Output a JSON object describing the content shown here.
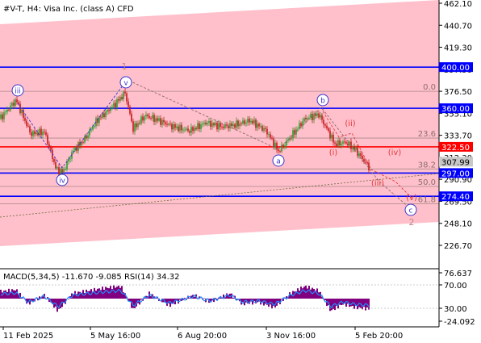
{
  "header": {
    "title": "#V-T, H4:  Visa Inc. (class A) CFD"
  },
  "colors": {
    "channel": "#ffc0cb",
    "blue_level": "#0000ff",
    "red_level": "#ff0000",
    "bull": "#2a9d2a",
    "bear": "#c51818",
    "wave_blue": "#3b33cc",
    "wave_red": "#e23a3a",
    "wave_marker": "#c98080",
    "fib": "#aa8888",
    "macd_hist": "#800080",
    "rsi": "#1e90ff"
  },
  "price_axis": {
    "ticks": [
      "462.10",
      "440.70",
      "419.30",
      "397.90",
      "376.50",
      "355.10",
      "333.70",
      "312.30",
      "290.90",
      "269.50",
      "248.10",
      "226.70"
    ]
  },
  "time_axis": {
    "ticks": [
      "11 Feb 2025",
      "5 May 16:00",
      "6 Aug 20:00",
      "3 Nov 16:00",
      "5 Feb 20:00"
    ]
  },
  "levels": [
    {
      "name": "level-400",
      "price": "400.00",
      "color": "blue"
    },
    {
      "name": "level-360",
      "price": "360.00",
      "color": "blue"
    },
    {
      "name": "level-322",
      "price": "322.50",
      "color": "red"
    },
    {
      "name": "level-297",
      "price": "297.00",
      "color": "blue"
    },
    {
      "name": "level-274",
      "price": "274.40",
      "color": "blue"
    }
  ],
  "current_price": "307.99",
  "fib_labels": [
    "0.0",
    "23.6",
    "38.2",
    "50.0",
    "61.8"
  ],
  "wave_labels": {
    "iii": "iii",
    "iv": "iv",
    "v": "v",
    "one": "1",
    "a": "a",
    "b": "b",
    "sub_i": "(i)",
    "sub_ii": "(ii)",
    "sub_iii": "(iii)",
    "sub_iv": "(iv)",
    "sub_v": "(v)",
    "c": "c",
    "two": "2"
  },
  "indicator": {
    "title": "MACD(5,34,5) -11.670 -9.085 RSI(14) 34.32",
    "ticks": [
      "76.637",
      "70.00",
      "30.00",
      "-24.092"
    ]
  },
  "chart_data": {
    "type": "candlestick",
    "symbol": "#V-T",
    "timeframe": "H4",
    "ylim": [
      220,
      462.1
    ],
    "x_ticks": [
      "11 Feb 2025",
      "5 May 16:00",
      "6 Aug 20:00",
      "3 Nov 16:00",
      "5 Feb 20:00"
    ],
    "close_path": [
      {
        "x": 0,
        "close": 350
      },
      {
        "x": 20,
        "close": 368
      },
      {
        "x": 38,
        "close": 335
      },
      {
        "x": 55,
        "close": 337
      },
      {
        "x": 70,
        "close": 300
      },
      {
        "x": 78,
        "close": 298
      },
      {
        "x": 90,
        "close": 318
      },
      {
        "x": 105,
        "close": 330
      },
      {
        "x": 120,
        "close": 348
      },
      {
        "x": 140,
        "close": 362
      },
      {
        "x": 155,
        "close": 375
      },
      {
        "x": 165,
        "close": 340
      },
      {
        "x": 180,
        "close": 353
      },
      {
        "x": 200,
        "close": 347
      },
      {
        "x": 215,
        "close": 342
      },
      {
        "x": 235,
        "close": 338
      },
      {
        "x": 255,
        "close": 346
      },
      {
        "x": 275,
        "close": 342
      },
      {
        "x": 292,
        "close": 344
      },
      {
        "x": 310,
        "close": 348
      },
      {
        "x": 330,
        "close": 338
      },
      {
        "x": 345,
        "close": 318
      },
      {
        "x": 360,
        "close": 332
      },
      {
        "x": 378,
        "close": 350
      },
      {
        "x": 395,
        "close": 354
      },
      {
        "x": 405,
        "close": 340
      },
      {
        "x": 415,
        "close": 325
      },
      {
        "x": 428,
        "close": 327
      },
      {
        "x": 440,
        "close": 320
      },
      {
        "x": 450,
        "close": 310
      },
      {
        "x": 457,
        "close": 303
      }
    ],
    "macd_series": [
      {
        "x": 0,
        "v": 8
      },
      {
        "x": 20,
        "v": 10
      },
      {
        "x": 35,
        "v": -6
      },
      {
        "x": 55,
        "v": 4
      },
      {
        "x": 72,
        "v": -14
      },
      {
        "x": 90,
        "v": 6
      },
      {
        "x": 110,
        "v": 9
      },
      {
        "x": 130,
        "v": 12
      },
      {
        "x": 150,
        "v": 14
      },
      {
        "x": 165,
        "v": -12
      },
      {
        "x": 185,
        "v": 6
      },
      {
        "x": 210,
        "v": -8
      },
      {
        "x": 240,
        "v": 4
      },
      {
        "x": 260,
        "v": -4
      },
      {
        "x": 285,
        "v": 6
      },
      {
        "x": 300,
        "v": -6
      },
      {
        "x": 320,
        "v": -4
      },
      {
        "x": 340,
        "v": -10
      },
      {
        "x": 360,
        "v": 6
      },
      {
        "x": 378,
        "v": 14
      },
      {
        "x": 395,
        "v": 9
      },
      {
        "x": 410,
        "v": -14
      },
      {
        "x": 425,
        "v": -6
      },
      {
        "x": 440,
        "v": -10
      },
      {
        "x": 457,
        "v": -11.67
      }
    ],
    "rsi_value": 34.32
  }
}
